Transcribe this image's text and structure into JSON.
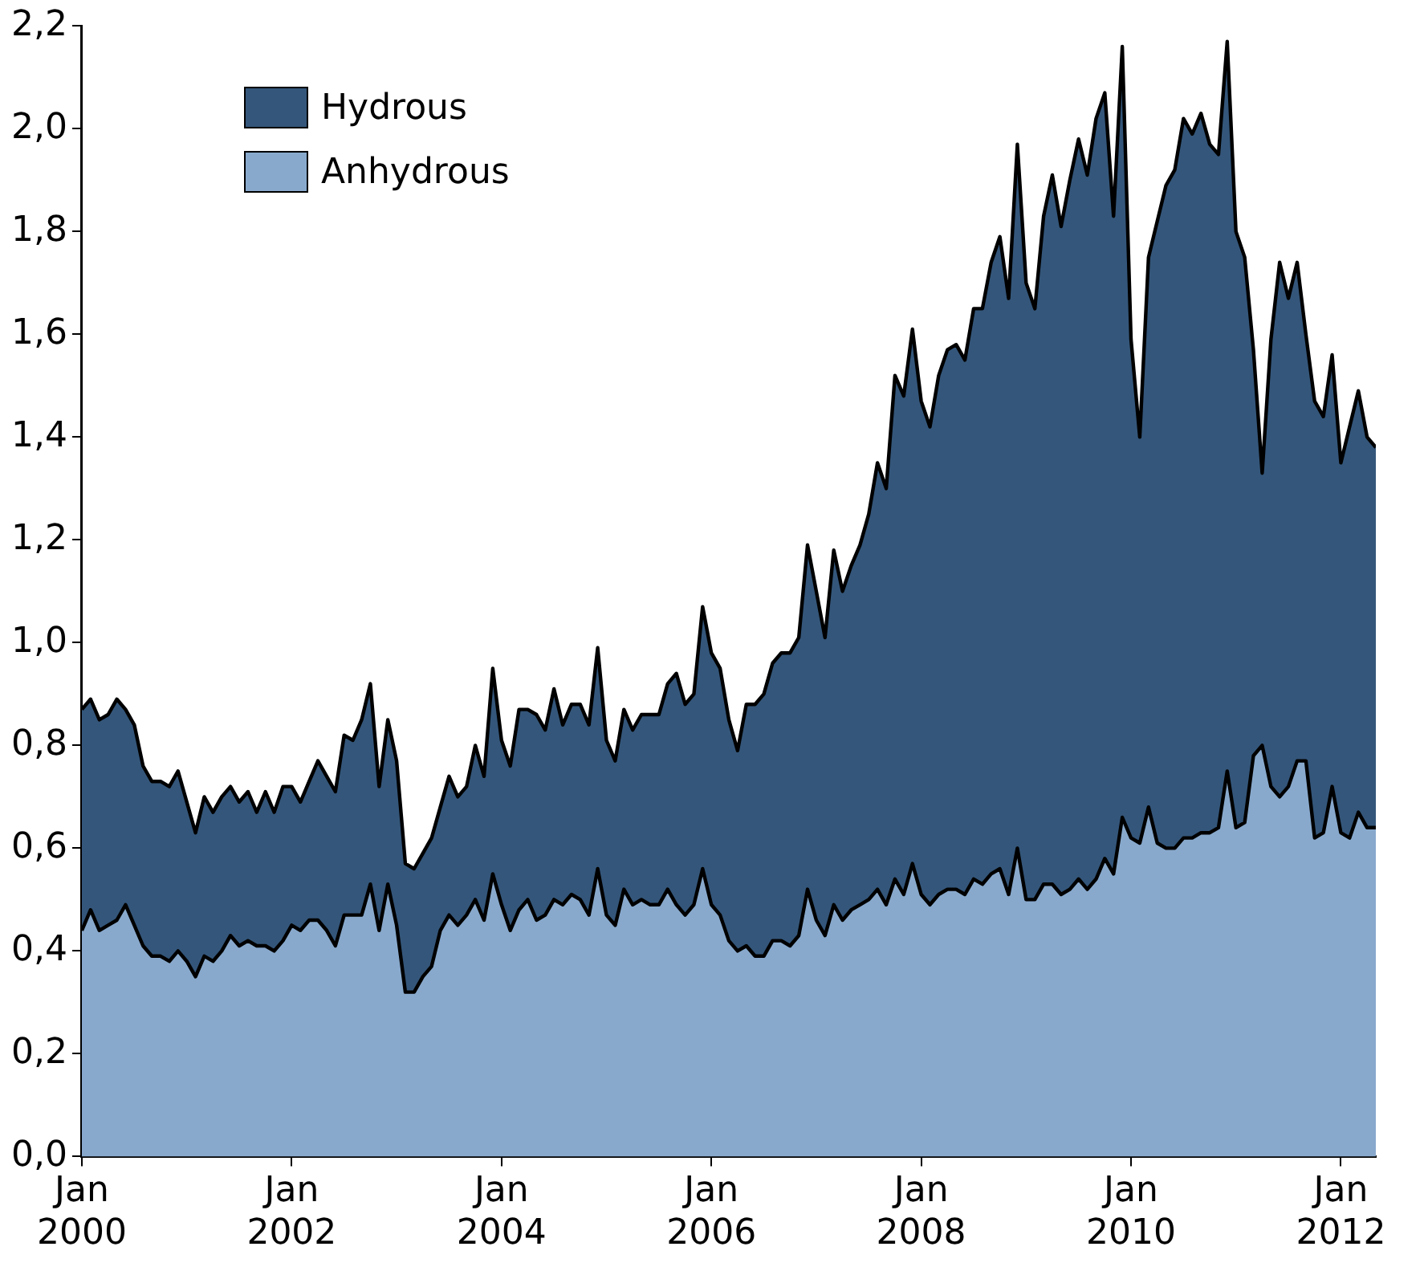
{
  "chart_data": {
    "type": "area",
    "stacked": true,
    "legend": "top left",
    "grid": false,
    "marker": "none",
    "x": [
      "2000-01",
      "2000-02",
      "2000-03",
      "2000-04",
      "2000-05",
      "2000-06",
      "2000-07",
      "2000-08",
      "2000-09",
      "2000-10",
      "2000-11",
      "2000-12",
      "2001-01",
      "2001-02",
      "2001-03",
      "2001-04",
      "2001-05",
      "2001-06",
      "2001-07",
      "2001-08",
      "2001-09",
      "2001-10",
      "2001-11",
      "2001-12",
      "2002-01",
      "2002-02",
      "2002-03",
      "2002-04",
      "2002-05",
      "2002-06",
      "2002-07",
      "2002-08",
      "2002-09",
      "2002-10",
      "2002-11",
      "2002-12",
      "2003-01",
      "2003-02",
      "2003-03",
      "2003-04",
      "2003-05",
      "2003-06",
      "2003-07",
      "2003-08",
      "2003-09",
      "2003-10",
      "2003-11",
      "2003-12",
      "2004-01",
      "2004-02",
      "2004-03",
      "2004-04",
      "2004-05",
      "2004-06",
      "2004-07",
      "2004-08",
      "2004-09",
      "2004-10",
      "2004-11",
      "2004-12",
      "2005-01",
      "2005-02",
      "2005-03",
      "2005-04",
      "2005-05",
      "2005-06",
      "2005-07",
      "2005-08",
      "2005-09",
      "2005-10",
      "2005-11",
      "2005-12",
      "2006-01",
      "2006-02",
      "2006-03",
      "2006-04",
      "2006-05",
      "2006-06",
      "2006-07",
      "2006-08",
      "2006-09",
      "2006-10",
      "2006-11",
      "2006-12",
      "2007-01",
      "2007-02",
      "2007-03",
      "2007-04",
      "2007-05",
      "2007-06",
      "2007-07",
      "2007-08",
      "2007-09",
      "2007-10",
      "2007-11",
      "2007-12",
      "2008-01",
      "2008-02",
      "2008-03",
      "2008-04",
      "2008-05",
      "2008-06",
      "2008-07",
      "2008-08",
      "2008-09",
      "2008-10",
      "2008-11",
      "2008-12",
      "2009-01",
      "2009-02",
      "2009-03",
      "2009-04",
      "2009-05",
      "2009-06",
      "2009-07",
      "2009-08",
      "2009-09",
      "2009-10",
      "2009-11",
      "2009-12",
      "2010-01",
      "2010-02",
      "2010-03",
      "2010-04",
      "2010-05",
      "2010-06",
      "2010-07",
      "2010-08",
      "2010-09",
      "2010-10",
      "2010-11",
      "2010-12",
      "2011-01",
      "2011-02",
      "2011-03",
      "2011-04",
      "2011-05",
      "2011-06",
      "2011-07",
      "2011-08",
      "2011-09",
      "2011-10",
      "2011-11",
      "2011-12",
      "2012-01",
      "2012-02",
      "2012-03",
      "2012-04",
      "2012-05"
    ],
    "xlim": [
      "2000-01",
      "2012-05"
    ],
    "xticks": [
      {
        "value": "2000-01",
        "label": "Jan 2000"
      },
      {
        "value": "2002-01",
        "label": "Jan 2002"
      },
      {
        "value": "2004-01",
        "label": "Jan 2004"
      },
      {
        "value": "2006-01",
        "label": "Jan 2006"
      },
      {
        "value": "2008-01",
        "label": "Jan 2008"
      },
      {
        "value": "2010-01",
        "label": "Jan 2010"
      },
      {
        "value": "2012-01",
        "label": "Jan 2012"
      }
    ],
    "ylim": [
      0,
      2.2
    ],
    "yticks": [
      {
        "value": 0,
        "label": "0,0"
      },
      {
        "value": 0.2,
        "label": "0,2"
      },
      {
        "value": 0.4,
        "label": "0,4"
      },
      {
        "value": 0.6,
        "label": "0,6"
      },
      {
        "value": 0.8,
        "label": "0,8"
      },
      {
        "value": 1.0,
        "label": "1,0"
      },
      {
        "value": 1.2,
        "label": "1,2"
      },
      {
        "value": 1.4,
        "label": "1,4"
      },
      {
        "value": 1.6,
        "label": "1,6"
      },
      {
        "value": 1.8,
        "label": "1,8"
      },
      {
        "value": 2.0,
        "label": "2,0"
      },
      {
        "value": 2.2,
        "label": "2,2"
      }
    ],
    "series": [
      {
        "name": "Anhydrous",
        "color": "#88a9cc",
        "values": [
          0.44,
          0.48,
          0.44,
          0.45,
          0.46,
          0.49,
          0.45,
          0.41,
          0.39,
          0.39,
          0.38,
          0.4,
          0.38,
          0.35,
          0.39,
          0.38,
          0.4,
          0.43,
          0.41,
          0.42,
          0.41,
          0.41,
          0.4,
          0.42,
          0.45,
          0.44,
          0.46,
          0.46,
          0.44,
          0.41,
          0.47,
          0.47,
          0.47,
          0.53,
          0.44,
          0.53,
          0.45,
          0.32,
          0.32,
          0.35,
          0.37,
          0.44,
          0.47,
          0.45,
          0.47,
          0.5,
          0.46,
          0.55,
          0.49,
          0.44,
          0.48,
          0.5,
          0.46,
          0.47,
          0.5,
          0.49,
          0.51,
          0.5,
          0.47,
          0.56,
          0.47,
          0.45,
          0.52,
          0.49,
          0.5,
          0.49,
          0.49,
          0.52,
          0.49,
          0.47,
          0.49,
          0.56,
          0.49,
          0.47,
          0.42,
          0.4,
          0.41,
          0.39,
          0.39,
          0.42,
          0.42,
          0.41,
          0.43,
          0.52,
          0.46,
          0.43,
          0.49,
          0.46,
          0.48,
          0.49,
          0.5,
          0.52,
          0.49,
          0.54,
          0.51,
          0.57,
          0.51,
          0.49,
          0.51,
          0.52,
          0.52,
          0.51,
          0.54,
          0.53,
          0.55,
          0.56,
          0.51,
          0.6,
          0.5,
          0.5,
          0.53,
          0.53,
          0.51,
          0.52,
          0.54,
          0.52,
          0.54,
          0.58,
          0.55,
          0.66,
          0.62,
          0.61,
          0.68,
          0.61,
          0.6,
          0.6,
          0.62,
          0.62,
          0.63,
          0.63,
          0.64,
          0.75,
          0.64,
          0.65,
          0.78,
          0.8,
          0.72,
          0.7,
          0.72,
          0.77,
          0.77,
          0.62,
          0.63,
          0.72,
          0.63,
          0.62,
          0.67,
          0.64,
          0.64
        ]
      },
      {
        "name": "Hydrous",
        "color": "#34567a",
        "values": [
          0.43,
          0.41,
          0.41,
          0.41,
          0.43,
          0.38,
          0.39,
          0.35,
          0.34,
          0.34,
          0.34,
          0.35,
          0.31,
          0.28,
          0.31,
          0.29,
          0.3,
          0.29,
          0.28,
          0.29,
          0.26,
          0.3,
          0.27,
          0.3,
          0.27,
          0.25,
          0.27,
          0.31,
          0.3,
          0.3,
          0.35,
          0.34,
          0.38,
          0.39,
          0.28,
          0.32,
          0.32,
          0.25,
          0.24,
          0.24,
          0.25,
          0.24,
          0.27,
          0.25,
          0.25,
          0.3,
          0.28,
          0.4,
          0.32,
          0.32,
          0.39,
          0.37,
          0.4,
          0.36,
          0.41,
          0.35,
          0.37,
          0.38,
          0.37,
          0.43,
          0.34,
          0.32,
          0.35,
          0.34,
          0.36,
          0.37,
          0.37,
          0.4,
          0.45,
          0.41,
          0.41,
          0.51,
          0.49,
          0.48,
          0.43,
          0.39,
          0.47,
          0.49,
          0.51,
          0.54,
          0.56,
          0.57,
          0.58,
          0.67,
          0.64,
          0.58,
          0.69,
          0.64,
          0.67,
          0.7,
          0.75,
          0.83,
          0.81,
          0.98,
          0.97,
          1.04,
          0.96,
          0.93,
          1.01,
          1.05,
          1.06,
          1.04,
          1.11,
          1.12,
          1.19,
          1.23,
          1.16,
          1.37,
          1.2,
          1.15,
          1.3,
          1.38,
          1.3,
          1.38,
          1.44,
          1.39,
          1.48,
          1.49,
          1.28,
          1.5,
          0.97,
          0.79,
          1.07,
          1.21,
          1.29,
          1.32,
          1.4,
          1.37,
          1.4,
          1.34,
          1.31,
          1.42,
          1.16,
          1.1,
          0.79,
          0.53,
          0.87,
          1.04,
          0.95,
          0.97,
          0.83,
          0.85,
          0.81,
          0.84,
          0.72,
          0.8,
          0.82,
          0.76,
          0.74
        ]
      }
    ]
  }
}
